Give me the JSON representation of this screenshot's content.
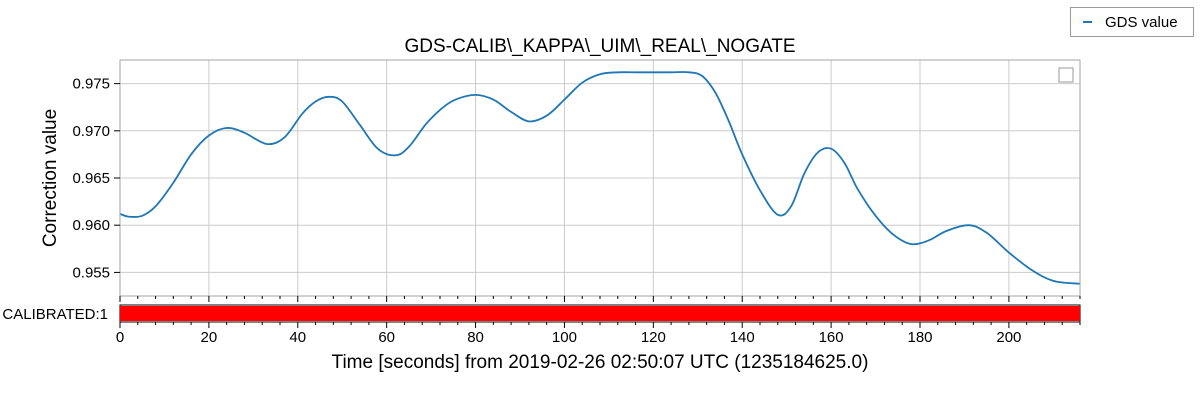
{
  "chart_data": {
    "type": "line",
    "title": "GDS-CALIB\\_KAPPA\\_UIM\\_REAL\\_NOGATE",
    "xlabel": "Time [seconds] from 2019-02-26 02:50:07 UTC (1235184625.0)",
    "ylabel": "Correction value",
    "xlim": [
      0,
      216
    ],
    "ylim": [
      0.9525,
      0.9775
    ],
    "x_ticks": [
      0,
      20,
      40,
      60,
      80,
      100,
      120,
      140,
      160,
      180,
      200
    ],
    "y_ticks": [
      0.955,
      0.96,
      0.965,
      0.97,
      0.975
    ],
    "x_tick_labels": [
      "0",
      "20",
      "40",
      "60",
      "80",
      "100",
      "120",
      "140",
      "160",
      "180",
      "200"
    ],
    "y_tick_labels": [
      "0.955",
      "0.960",
      "0.965",
      "0.970",
      "0.975"
    ],
    "grid": true,
    "legend_placement": "top-right, outside plot",
    "series": [
      {
        "name": "GDS value",
        "color": "#1f77b4",
        "x": [
          0,
          2,
          5,
          8,
          12,
          16,
          20,
          24,
          28,
          33,
          37,
          41,
          44,
          47,
          50,
          54,
          58,
          62,
          65,
          69,
          73,
          76,
          80,
          84,
          88,
          92,
          96,
          100,
          104,
          108,
          112,
          116,
          120,
          124,
          128,
          131,
          134,
          137,
          140,
          144,
          148,
          151,
          154,
          157,
          160,
          163,
          166,
          170,
          174,
          178,
          182,
          186,
          191,
          195,
          200,
          205,
          210,
          216
        ],
        "y": [
          0.9612,
          0.9609,
          0.961,
          0.962,
          0.9645,
          0.9675,
          0.9695,
          0.9703,
          0.9698,
          0.9686,
          0.9693,
          0.9718,
          0.9731,
          0.9736,
          0.9731,
          0.9706,
          0.9681,
          0.9674,
          0.9683,
          0.9708,
          0.9726,
          0.9734,
          0.9738,
          0.9733,
          0.972,
          0.971,
          0.9716,
          0.9733,
          0.9751,
          0.976,
          0.9762,
          0.9762,
          0.9762,
          0.9762,
          0.9762,
          0.9758,
          0.974,
          0.971,
          0.9675,
          0.9637,
          0.9611,
          0.962,
          0.9655,
          0.9677,
          0.9681,
          0.9666,
          0.9638,
          0.961,
          0.959,
          0.958,
          0.9584,
          0.9594,
          0.96,
          0.9592,
          0.9571,
          0.9553,
          0.9541,
          0.9538
        ]
      }
    ],
    "state_bar": {
      "label": "CALIBRATED:1",
      "color": "#ff0000",
      "segments": [
        [
          0,
          216
        ]
      ]
    }
  }
}
